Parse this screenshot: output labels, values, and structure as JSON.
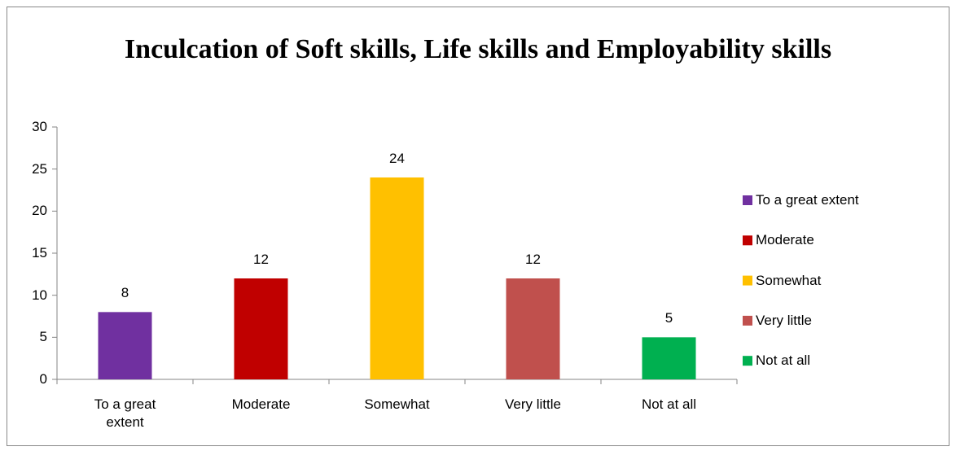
{
  "chart_data": {
    "type": "bar",
    "title": "Inculcation of Soft skills, Life skills and Employability skills",
    "categories": [
      "To a great extent",
      "Moderate",
      "Somewhat",
      "Very little",
      "Not at all"
    ],
    "values": [
      8,
      12,
      24,
      12,
      5
    ],
    "colors": [
      "#7030a0",
      "#c00000",
      "#ffc000",
      "#c0504d",
      "#00b050"
    ],
    "ylim": [
      0,
      30
    ],
    "yticks": [
      0,
      5,
      10,
      15,
      20,
      25,
      30
    ],
    "grid": false,
    "legend": "right"
  }
}
